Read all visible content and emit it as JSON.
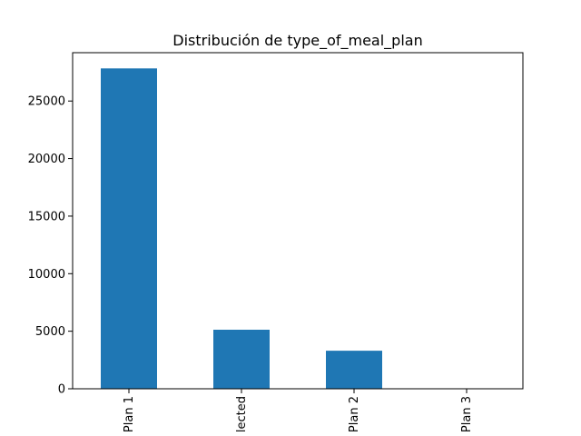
{
  "chart_data": {
    "type": "bar",
    "title": "Distribución de type_of_meal_plan",
    "categories": [
      "Plan 1",
      "lected",
      "Plan 2",
      "Plan 3"
    ],
    "values": [
      27835,
      5130,
      3305,
      5
    ],
    "y_ticks": [
      0,
      5000,
      10000,
      15000,
      20000,
      25000
    ],
    "ylim": [
      0,
      29200
    ],
    "xlabel": "",
    "ylabel": "",
    "grid": false,
    "legend": false,
    "bar_color": "#1f77b4"
  }
}
